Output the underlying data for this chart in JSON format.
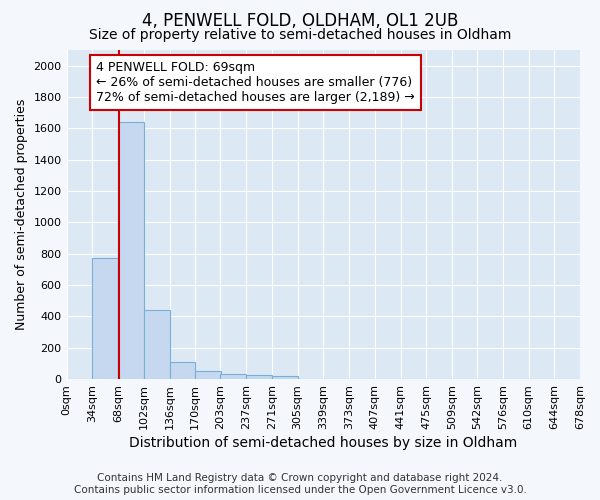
{
  "title": "4, PENWELL FOLD, OLDHAM, OL1 2UB",
  "subtitle": "Size of property relative to semi-detached houses in Oldham",
  "xlabel": "Distribution of semi-detached houses by size in Oldham",
  "ylabel": "Number of semi-detached properties",
  "footer_line1": "Contains HM Land Registry data © Crown copyright and database right 2024.",
  "footer_line2": "Contains public sector information licensed under the Open Government Licence v3.0.",
  "bin_labels": [
    "0sqm",
    "34sqm",
    "68sqm",
    "102sqm",
    "136sqm",
    "170sqm",
    "203sqm",
    "237sqm",
    "271sqm",
    "305sqm",
    "339sqm",
    "373sqm",
    "407sqm",
    "441sqm",
    "475sqm",
    "509sqm",
    "542sqm",
    "576sqm",
    "610sqm",
    "644sqm",
    "678sqm"
  ],
  "bin_edges": [
    0,
    34,
    68,
    102,
    136,
    170,
    203,
    237,
    271,
    305,
    339,
    373,
    407,
    441,
    475,
    509,
    542,
    576,
    610,
    644,
    678
  ],
  "bar_values": [
    0,
    776,
    1640,
    440,
    110,
    50,
    30,
    25,
    20,
    0,
    0,
    0,
    0,
    0,
    0,
    0,
    0,
    0,
    0,
    0
  ],
  "bar_color": "#c5d8f0",
  "bar_edge_color": "#7aafd4",
  "bg_color": "#dce9f5",
  "grid_color": "#ffffff",
  "fig_bg_color": "#f4f7fc",
  "property_size": 69,
  "vline_color": "#cc0000",
  "annotation_line1": "4 PENWELL FOLD: 69sqm",
  "annotation_line2": "← 26% of semi-detached houses are smaller (776)",
  "annotation_line3": "72% of semi-detached houses are larger (2,189) →",
  "annotation_box_color": "#cc0000",
  "ylim": [
    0,
    2100
  ],
  "yticks": [
    0,
    200,
    400,
    600,
    800,
    1000,
    1200,
    1400,
    1600,
    1800,
    2000
  ],
  "title_fontsize": 12,
  "subtitle_fontsize": 10,
  "xlabel_fontsize": 10,
  "ylabel_fontsize": 9,
  "tick_fontsize": 8,
  "annotation_fontsize": 9,
  "footer_fontsize": 7.5
}
